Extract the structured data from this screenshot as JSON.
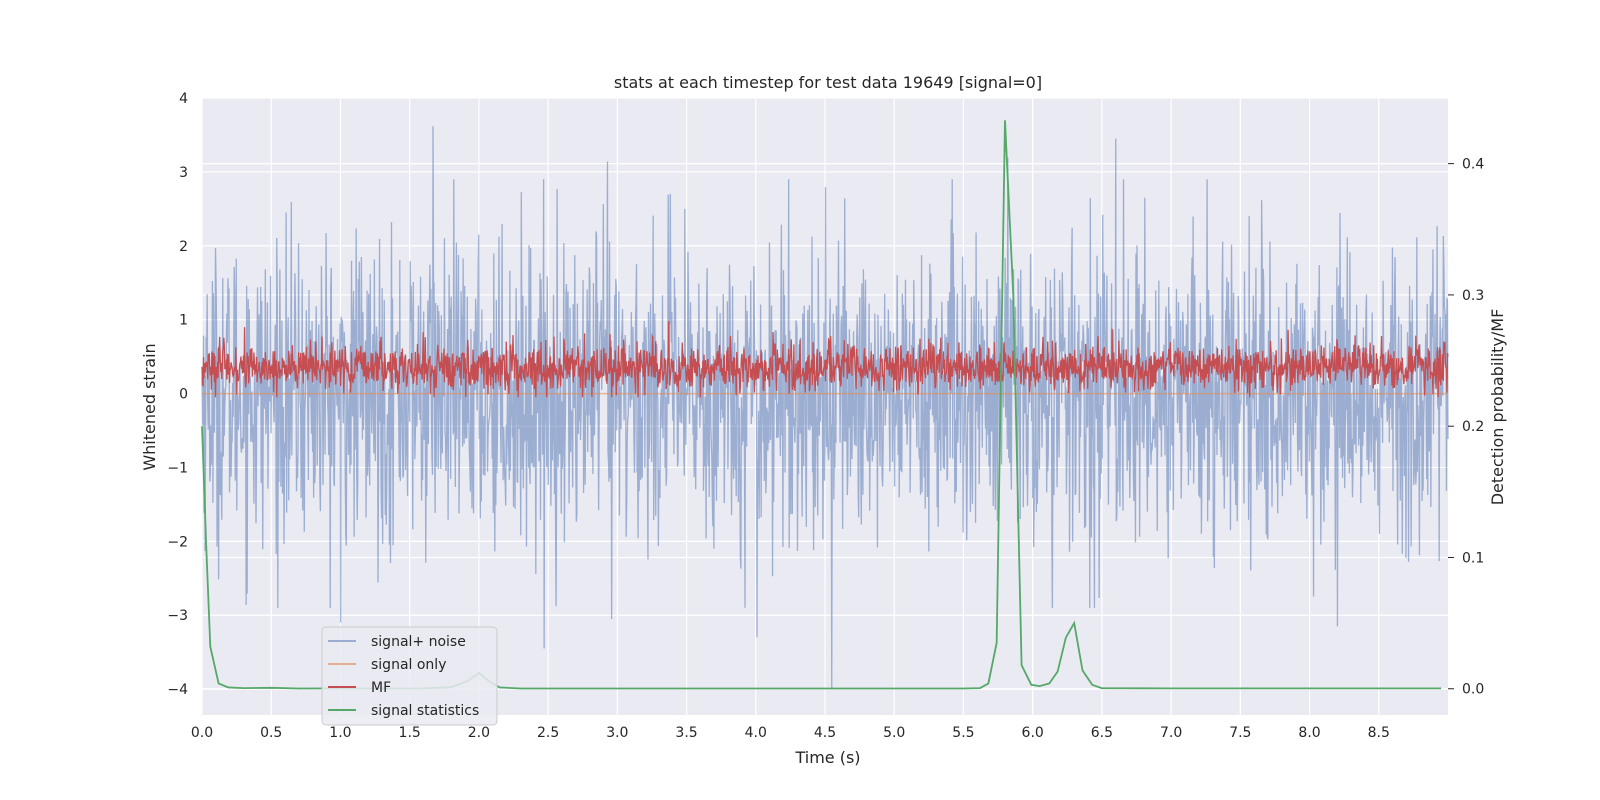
{
  "chart_data": {
    "type": "line",
    "title": "stats at each timestep for test data 19649 [signal=0]",
    "xlabel": "Time (s)",
    "ylabel_left": "Whitened strain",
    "ylabel_right": "Detection probability/MF",
    "xlim": [
      0.0,
      9.0
    ],
    "ylim_left": [
      -4.35,
      4.0
    ],
    "ylim_right": [
      -0.02,
      0.45
    ],
    "x_ticks": [
      "0.0",
      "0.5",
      "1.0",
      "1.5",
      "2.0",
      "2.5",
      "3.0",
      "3.5",
      "4.0",
      "4.5",
      "5.0",
      "5.5",
      "6.0",
      "6.5",
      "7.0",
      "7.5",
      "8.0",
      "8.5"
    ],
    "y_ticks_left": [
      "4",
      "3",
      "2",
      "1",
      "0",
      "−1",
      "−2",
      "−3",
      "−4"
    ],
    "y_ticks_right": [
      "0.4",
      "0.3",
      "0.2",
      "0.1",
      "0.0"
    ],
    "grid": true,
    "legend_position": "lower-left",
    "background_color": "#eaeaf2",
    "series": [
      {
        "name": "signal+ noise",
        "axis": "left",
        "color": "#4c72b0",
        "opacity": 0.5,
        "style": "noise",
        "x_range": [
          0.0,
          9.0
        ],
        "std": 1.0,
        "peaks": [
          {
            "x": 1.67,
            "y": 3.62
          },
          {
            "x": 5.82,
            "y": 3.19
          },
          {
            "x": 6.6,
            "y": 3.45
          },
          {
            "x": 2.93,
            "y": 3.14
          },
          {
            "x": 4.55,
            "y": -4.0
          },
          {
            "x": 2.47,
            "y": -3.45
          },
          {
            "x": 1.0,
            "y": -3.1
          },
          {
            "x": 2.96,
            "y": -3.05
          },
          {
            "x": 4.01,
            "y": -3.3
          },
          {
            "x": 8.2,
            "y": -3.15
          }
        ]
      },
      {
        "name": "signal only",
        "axis": "left",
        "color": "#dd8452",
        "opacity": 0.6,
        "style": "flat",
        "value": 0.0
      },
      {
        "name": "MF",
        "axis": "left",
        "color": "#c44e52",
        "opacity": 1.0,
        "style": "noise",
        "x_range": [
          0.0,
          9.0
        ],
        "mean": 0.35,
        "std": 0.16,
        "peaks": [
          {
            "x": 3.37,
            "y": 0.98
          },
          {
            "x": 3.2,
            "y": -0.02
          }
        ]
      },
      {
        "name": "signal statistics",
        "axis": "right",
        "color": "#55a868",
        "opacity": 1.0,
        "style": "line",
        "x": [
          0.0,
          0.03,
          0.06,
          0.12,
          0.19,
          0.3,
          0.5,
          0.7,
          1.0,
          1.3,
          1.6,
          1.8,
          1.92,
          2.0,
          2.07,
          2.15,
          2.3,
          3.0,
          4.0,
          5.0,
          5.5,
          5.62,
          5.68,
          5.74,
          5.8,
          5.86,
          5.92,
          5.99,
          6.05,
          6.12,
          6.18,
          6.24,
          6.3,
          6.36,
          6.43,
          6.5,
          7.0,
          8.0,
          8.95
        ],
        "y": [
          0.2,
          0.11,
          0.032,
          0.004,
          0.001,
          0.0005,
          0.0007,
          0.0002,
          0.0003,
          0.0002,
          0.0003,
          0.0012,
          0.006,
          0.012,
          0.006,
          0.001,
          0.0002,
          0.0002,
          0.0002,
          0.0002,
          0.0002,
          0.0005,
          0.004,
          0.035,
          0.433,
          0.3,
          0.018,
          0.003,
          0.002,
          0.004,
          0.013,
          0.039,
          0.05,
          0.014,
          0.003,
          0.0004,
          0.0003,
          0.0003,
          0.0003
        ]
      }
    ]
  }
}
